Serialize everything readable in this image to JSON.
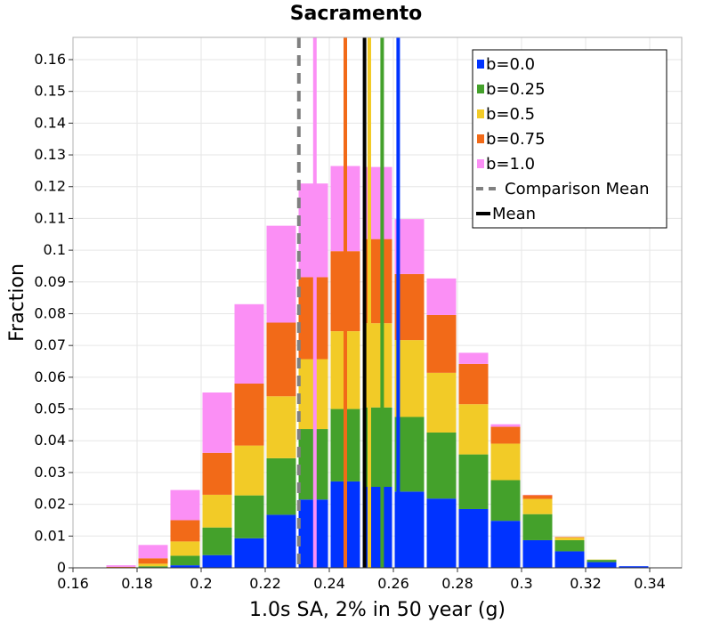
{
  "chart_data": {
    "type": "bar",
    "stacked": true,
    "title": "Sacramento",
    "xlabel": "1.0s SA, 2% in 50 year (g)",
    "ylabel": "Fraction",
    "xlim": [
      0.16,
      0.35
    ],
    "ylim": [
      0,
      0.167
    ],
    "bin_width": 0.01,
    "x_ticks": [
      "0.16",
      "0.18",
      "0.2",
      "0.22",
      "0.24",
      "0.26",
      "0.28",
      "0.3",
      "0.32",
      "0.34"
    ],
    "y_ticks": [
      "0",
      "0.01",
      "0.02",
      "0.03",
      "0.04",
      "0.05",
      "0.06",
      "0.07",
      "0.08",
      "0.09",
      "0.1",
      "0.11",
      "0.12",
      "0.13",
      "0.14",
      "0.15",
      "0.16"
    ],
    "grid": true,
    "legend_position": "top-right",
    "bin_centers": [
      0.175,
      0.185,
      0.195,
      0.205,
      0.215,
      0.225,
      0.235,
      0.245,
      0.255,
      0.265,
      0.275,
      0.285,
      0.295,
      0.305,
      0.315,
      0.325,
      0.335,
      0.345
    ],
    "series": [
      {
        "name": "b=0.0",
        "color": "#0033ff",
        "values": [
          0,
          0,
          0.0008,
          0.004,
          0.0093,
          0.0167,
          0.0215,
          0.0272,
          0.0255,
          0.024,
          0.0218,
          0.0185,
          0.0148,
          0.0087,
          0.0052,
          0.0018,
          0.0005,
          0
        ]
      },
      {
        "name": "b=0.25",
        "color": "#44a12b",
        "values": [
          0,
          0.0005,
          0.003,
          0.0087,
          0.0135,
          0.0178,
          0.0222,
          0.0228,
          0.025,
          0.0235,
          0.0208,
          0.0172,
          0.0128,
          0.0082,
          0.0035,
          0.0007,
          0,
          0
        ]
      },
      {
        "name": "b=0.5",
        "color": "#f2cb27",
        "values": [
          0,
          0.0008,
          0.0045,
          0.0103,
          0.0157,
          0.0195,
          0.022,
          0.0245,
          0.0265,
          0.0242,
          0.0188,
          0.0158,
          0.0115,
          0.0048,
          0.0008,
          0.0001,
          0,
          0
        ]
      },
      {
        "name": "b=0.75",
        "color": "#f26a18",
        "values": [
          0.0003,
          0.0017,
          0.0067,
          0.0132,
          0.0195,
          0.0232,
          0.0258,
          0.0252,
          0.0265,
          0.0208,
          0.0182,
          0.0127,
          0.0053,
          0.0012,
          0.0002,
          0,
          0,
          0
        ]
      },
      {
        "name": "b=1.0",
        "color": "#fb8ff5",
        "values": [
          0.0005,
          0.0042,
          0.0095,
          0.019,
          0.025,
          0.0305,
          0.0295,
          0.0268,
          0.0227,
          0.0173,
          0.0115,
          0.0035,
          0.0008,
          0.0001,
          0,
          0,
          0,
          0
        ]
      }
    ],
    "vertical_lines": [
      {
        "name": "b=0.0",
        "x": 0.2615,
        "color": "#0033ff"
      },
      {
        "name": "b=0.25",
        "x": 0.2565,
        "color": "#44a12b"
      },
      {
        "name": "b=0.5",
        "x": 0.2525,
        "color": "#f2cb27"
      },
      {
        "name": "b=0.75",
        "x": 0.245,
        "color": "#f26a18"
      },
      {
        "name": "b=1.0",
        "x": 0.2355,
        "color": "#fb8ff5"
      },
      {
        "name": "Comparison Mean",
        "x": 0.2305,
        "color": "#808080",
        "dashed": true
      },
      {
        "name": "Mean",
        "x": 0.251,
        "color": "#000000"
      }
    ],
    "legend": [
      {
        "label": "b=0.0",
        "color": "#0033ff",
        "kind": "box"
      },
      {
        "label": "b=0.25",
        "color": "#44a12b",
        "kind": "box"
      },
      {
        "label": "b=0.5",
        "color": "#f2cb27",
        "kind": "box"
      },
      {
        "label": "b=0.75",
        "color": "#f26a18",
        "kind": "box"
      },
      {
        "label": "b=1.0",
        "color": "#fb8ff5",
        "kind": "box"
      },
      {
        "label": "Comparison Mean",
        "color": "#808080",
        "kind": "dash"
      },
      {
        "label": "Mean",
        "color": "#000000",
        "kind": "line"
      }
    ]
  }
}
